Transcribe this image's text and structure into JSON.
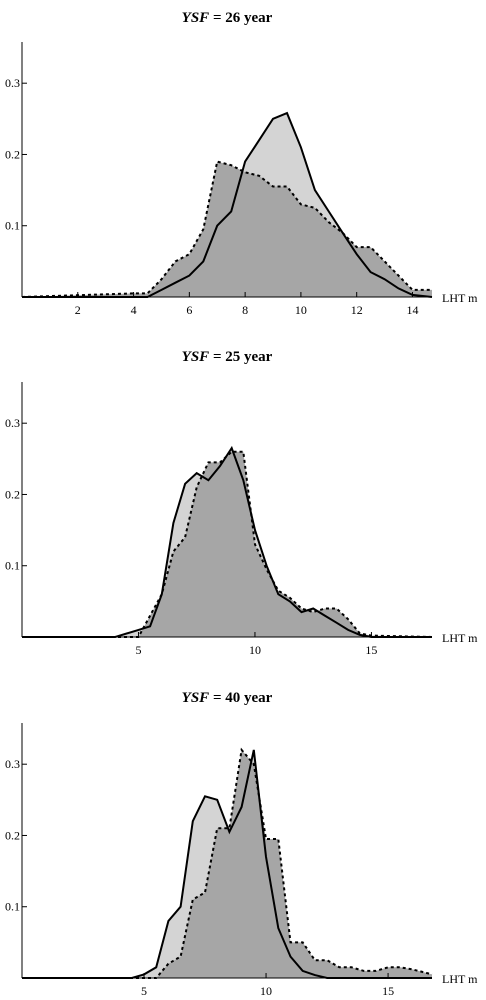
{
  "chart_data": [
    {
      "type": "area",
      "title_var": "YSF",
      "title_rest": " = 26 year",
      "xlabel": "LHT m",
      "ylabel": "",
      "xlim": [
        0,
        14.7
      ],
      "ylim": [
        0,
        0.355
      ],
      "xticks": [
        2,
        4,
        6,
        8,
        10,
        12,
        14
      ],
      "yticks": [
        0.1,
        0.2,
        0.3
      ],
      "ytick_labels": [
        "0.1",
        "0.2",
        "0.3"
      ],
      "colors": {
        "solid_fill": "#d4d4d4",
        "dashed_fill": "#a6a6a6",
        "line": "#000000"
      },
      "series": [
        {
          "style": "solid",
          "x": [
            0,
            4.5,
            5.0,
            5.5,
            6.0,
            6.5,
            7.0,
            7.5,
            8.0,
            8.5,
            9.0,
            9.5,
            10.0,
            10.5,
            11.0,
            11.5,
            12.0,
            12.5,
            13.0,
            13.5,
            14.0,
            14.7
          ],
          "y": [
            0,
            0,
            0.01,
            0.02,
            0.03,
            0.05,
            0.1,
            0.12,
            0.19,
            0.22,
            0.25,
            0.258,
            0.21,
            0.15,
            0.12,
            0.09,
            0.06,
            0.035,
            0.025,
            0.012,
            0.003,
            0
          ]
        },
        {
          "style": "dashed",
          "x": [
            0,
            4.0,
            4.5,
            5.0,
            5.5,
            6.0,
            6.5,
            7.0,
            7.5,
            8.0,
            8.5,
            9.0,
            9.5,
            10.0,
            10.5,
            11.0,
            11.5,
            12.0,
            12.5,
            13.0,
            13.5,
            14.0,
            14.7
          ],
          "y": [
            0,
            0.005,
            0.005,
            0.025,
            0.05,
            0.06,
            0.095,
            0.19,
            0.185,
            0.175,
            0.17,
            0.155,
            0.155,
            0.13,
            0.125,
            0.105,
            0.09,
            0.07,
            0.07,
            0.05,
            0.03,
            0.01,
            0.01
          ]
        }
      ]
    },
    {
      "type": "area",
      "title_var": "YSF",
      "title_rest": " = 25 year",
      "xlabel": "LHT m",
      "ylabel": "",
      "xlim": [
        0,
        17.6
      ],
      "ylim": [
        0,
        0.355
      ],
      "xticks": [
        5,
        10,
        15
      ],
      "yticks": [
        0.1,
        0.2,
        0.3
      ],
      "ytick_labels": [
        "0.1",
        "0.2",
        "0.3"
      ],
      "colors": {
        "solid_fill": "#d4d4d4",
        "dashed_fill": "#a6a6a6",
        "line": "#000000"
      },
      "series": [
        {
          "style": "solid",
          "x": [
            0,
            4.0,
            5.0,
            5.5,
            6.0,
            6.5,
            7.0,
            7.5,
            8.0,
            8.5,
            9.0,
            9.5,
            10.0,
            10.5,
            11.0,
            11.5,
            12.0,
            12.5,
            13.0,
            13.5,
            14.0,
            14.5,
            15.0,
            17.6
          ],
          "y": [
            0,
            0,
            0.01,
            0.015,
            0.06,
            0.16,
            0.215,
            0.23,
            0.22,
            0.24,
            0.265,
            0.22,
            0.15,
            0.1,
            0.06,
            0.05,
            0.035,
            0.04,
            0.03,
            0.02,
            0.01,
            0.003,
            0,
            0
          ]
        },
        {
          "style": "dashed",
          "x": [
            0,
            5.0,
            5.5,
            6.0,
            6.5,
            7.0,
            7.5,
            8.0,
            8.5,
            9.0,
            9.5,
            10.0,
            10.5,
            11.0,
            11.5,
            12.0,
            12.5,
            13.0,
            13.5,
            14.0,
            14.5,
            15.0,
            17.6
          ],
          "y": [
            0,
            0,
            0.03,
            0.06,
            0.12,
            0.14,
            0.21,
            0.245,
            0.245,
            0.26,
            0.26,
            0.13,
            0.095,
            0.065,
            0.055,
            0.04,
            0.035,
            0.04,
            0.04,
            0.025,
            0.005,
            0.002,
            0
          ]
        }
      ]
    },
    {
      "type": "area",
      "title_var": "YSF",
      "title_rest": " = 40 year",
      "xlabel": "LHT m",
      "ylabel": "",
      "xlim": [
        0,
        16.8
      ],
      "ylim": [
        0,
        0.355
      ],
      "xticks": [
        5,
        10,
        15
      ],
      "yticks": [
        0.1,
        0.2,
        0.3
      ],
      "ytick_labels": [
        "0.1",
        "0.2",
        "0.3"
      ],
      "colors": {
        "solid_fill": "#d4d4d4",
        "dashed_fill": "#a6a6a6",
        "line": "#000000"
      },
      "series": [
        {
          "style": "solid",
          "x": [
            0,
            4.5,
            5.0,
            5.5,
            6.0,
            6.5,
            7.0,
            7.5,
            8.0,
            8.5,
            9.0,
            9.5,
            10.0,
            10.5,
            11.0,
            11.5,
            12.0,
            12.5,
            16.8
          ],
          "y": [
            0,
            0,
            0.005,
            0.015,
            0.08,
            0.1,
            0.22,
            0.255,
            0.25,
            0.205,
            0.24,
            0.32,
            0.17,
            0.07,
            0.03,
            0.01,
            0.004,
            0,
            0
          ]
        },
        {
          "style": "dashed",
          "x": [
            0,
            5.5,
            6.0,
            6.5,
            7.0,
            7.5,
            8.0,
            8.5,
            9.0,
            9.5,
            10.0,
            10.5,
            11.0,
            11.5,
            12.0,
            12.5,
            13.0,
            13.5,
            14.0,
            14.5,
            15.0,
            15.5,
            16.0,
            16.8
          ],
          "y": [
            0,
            0,
            0.02,
            0.03,
            0.11,
            0.12,
            0.21,
            0.21,
            0.32,
            0.3,
            0.195,
            0.195,
            0.05,
            0.05,
            0.025,
            0.025,
            0.015,
            0.015,
            0.01,
            0.01,
            0.015,
            0.015,
            0.012,
            0.005
          ]
        }
      ]
    }
  ]
}
